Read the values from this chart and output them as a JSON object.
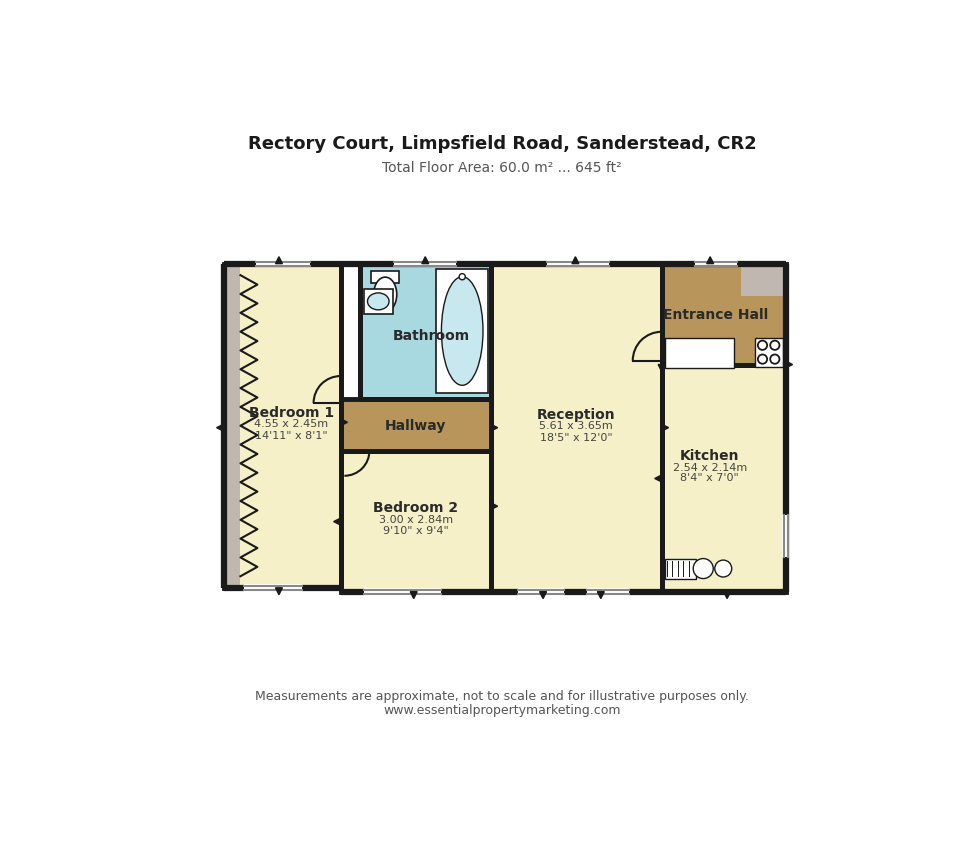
{
  "title": "Rectory Court, Limpsfield Road, Sanderstead, CR2",
  "subtitle": "Total Floor Area: 60.0 m² ... 645 ft²",
  "footer1": "Measurements are approximate, not to scale and for illustrative purposes only.",
  "footer2": "www.essentialpropertymarketing.com",
  "bg_color": "#ffffff",
  "wall_color": "#1a1a1a",
  "room_fill_main": "#f5f0c8",
  "room_fill_bathroom": "#a8d8e0",
  "room_fill_hallway": "#b8955a",
  "room_fill_entrance": "#b8955a",
  "room_fill_closet": "#c0b8b0",
  "title_fontsize": 13,
  "subtitle_fontsize": 10,
  "label_fontsize": 10,
  "dim_fontsize": 8,
  "footer_fontsize": 9
}
